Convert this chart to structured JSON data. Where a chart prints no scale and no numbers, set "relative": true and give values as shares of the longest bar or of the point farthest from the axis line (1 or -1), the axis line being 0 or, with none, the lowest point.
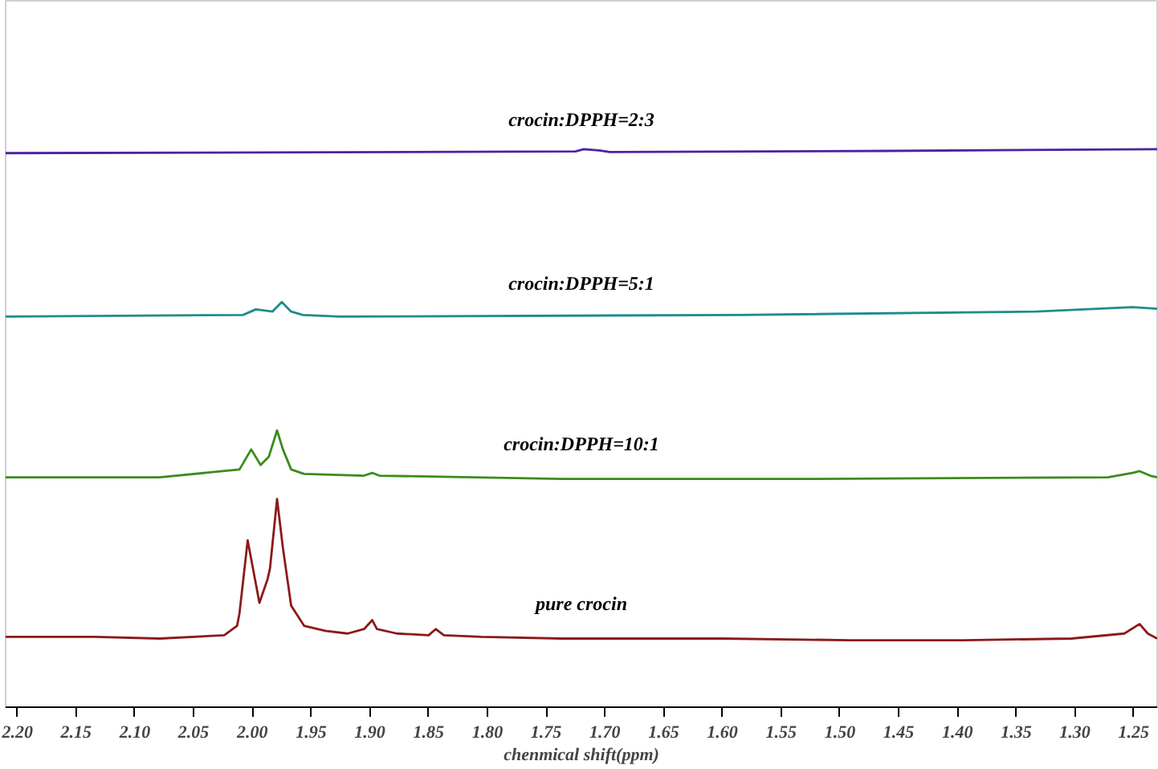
{
  "chart_data": {
    "type": "line",
    "relative": true,
    "xlabel": "chenmical shift(ppm)",
    "xlim": [
      2.21,
      1.23
    ],
    "xticks": [
      {
        "value": 2.2,
        "label": "2.20"
      },
      2.15,
      {
        "value": 2.1,
        "label": "2.10"
      },
      2.05,
      {
        "value": 2.0,
        "label": "2.00"
      },
      1.95,
      {
        "value": 1.9,
        "label": "1.90"
      },
      1.85,
      {
        "value": 1.8,
        "label": "1.80"
      },
      1.75,
      {
        "value": 1.7,
        "label": "1.70"
      },
      1.65,
      {
        "value": 1.6,
        "label": "1.60"
      },
      1.55,
      {
        "value": 1.5,
        "label": "1.50"
      },
      1.45,
      {
        "value": 1.4,
        "label": "1.40"
      },
      1.35,
      {
        "value": 1.3,
        "label": "1.30"
      },
      1.25
    ],
    "grid": false,
    "marker": "none",
    "line_style": "solid",
    "series": [
      {
        "name": "crocin:DPPH=2:3",
        "color": "#4a23a0",
        "x": [
          2.21,
          1.725,
          1.718,
          1.705,
          1.696,
          1.459,
          1.23
        ],
        "values": [
          0.993,
          0.996,
          1.0,
          0.998,
          0.995,
          0.997,
          1.0
        ]
      },
      {
        "name": "crocin:DPPH=5:1",
        "color": "#1f8c8c",
        "x": [
          2.21,
          2.008,
          1.997,
          1.983,
          1.975,
          1.967,
          1.957,
          1.926,
          1.585,
          1.333,
          1.251,
          1.23
        ],
        "values": [
          0.7,
          0.703,
          0.713,
          0.709,
          0.726,
          0.709,
          0.703,
          0.7,
          0.703,
          0.709,
          0.717,
          0.714
        ]
      },
      {
        "name": "crocin:DPPH=10:1",
        "color": "#3a8c1a",
        "x": [
          2.21,
          2.079,
          2.011,
          2.001,
          1.993,
          1.986,
          1.979,
          1.974,
          1.967,
          1.956,
          1.905,
          1.898,
          1.892,
          1.737,
          1.532,
          1.272,
          1.251,
          1.245,
          1.236,
          1.23
        ],
        "values": [
          0.412,
          0.412,
          0.426,
          0.462,
          0.434,
          0.449,
          0.496,
          0.462,
          0.426,
          0.418,
          0.415,
          0.42,
          0.415,
          0.409,
          0.409,
          0.412,
          0.42,
          0.423,
          0.415,
          0.412
        ]
      },
      {
        "name": "pure crocin",
        "color": "#8b1a1a",
        "x": [
          2.21,
          2.134,
          2.079,
          2.024,
          2.013,
          2.011,
          2.004,
          1.994,
          1.987,
          1.985,
          1.979,
          1.974,
          1.967,
          1.956,
          1.938,
          1.919,
          1.905,
          1.898,
          1.894,
          1.877,
          1.85,
          1.844,
          1.837,
          1.805,
          1.737,
          1.6,
          1.491,
          1.395,
          1.303,
          1.258,
          1.245,
          1.238,
          1.23
        ],
        "values": [
          0.126,
          0.126,
          0.123,
          0.129,
          0.146,
          0.168,
          0.299,
          0.187,
          0.23,
          0.249,
          0.373,
          0.285,
          0.182,
          0.146,
          0.137,
          0.132,
          0.14,
          0.156,
          0.14,
          0.132,
          0.129,
          0.14,
          0.129,
          0.126,
          0.123,
          0.123,
          0.12,
          0.12,
          0.123,
          0.132,
          0.149,
          0.132,
          0.123
        ]
      }
    ]
  }
}
